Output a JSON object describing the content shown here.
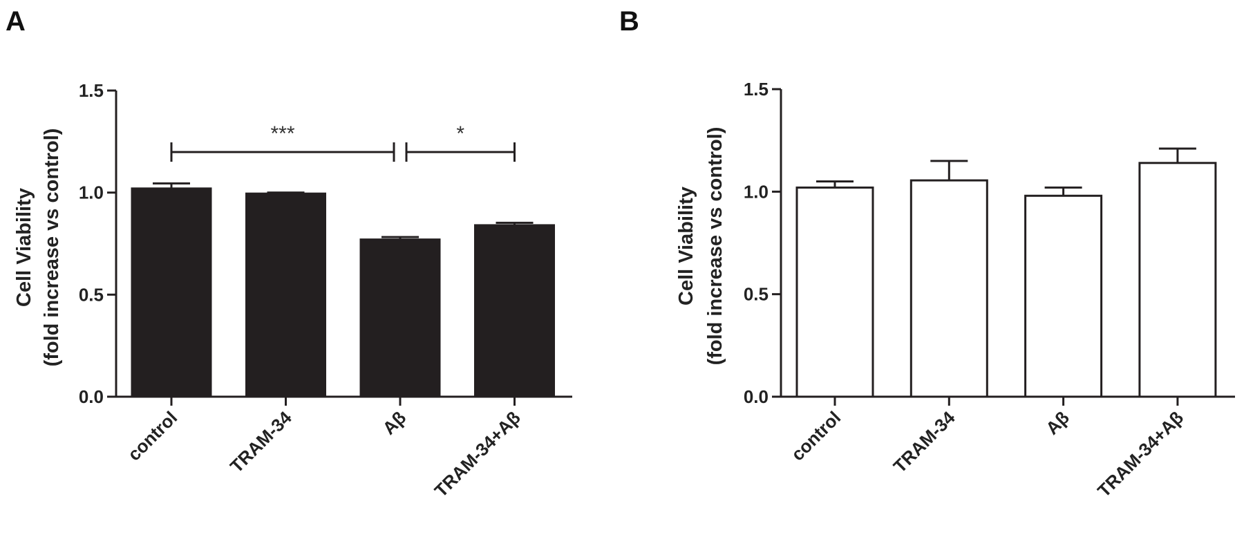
{
  "chart_data": [
    {
      "panel_label": "A",
      "type": "bar",
      "categories": [
        "control",
        "TRAM-34",
        "Aβ",
        "TRAM-34+Aβ"
      ],
      "values": [
        1.02,
        0.995,
        0.77,
        0.84
      ],
      "errors": [
        0.025,
        0.005,
        0.012,
        0.012
      ],
      "ylabel_line1": "Cell Viability",
      "ylabel_line2": "(fold increase vs control)",
      "ylim": [
        0,
        1.5
      ],
      "yticks": [
        "0.0",
        "0.5",
        "1.0",
        "1.5"
      ],
      "bar_fill": "#231f20",
      "significance": [
        {
          "from": "control",
          "to": "Aβ",
          "label": "***"
        },
        {
          "from": "Aβ",
          "to": "TRAM-34+Aβ",
          "label": "*"
        }
      ]
    },
    {
      "panel_label": "B",
      "type": "bar",
      "categories": [
        "control",
        "TRAM-34",
        "Aβ",
        "TRAM-34+Aβ"
      ],
      "values": [
        1.02,
        1.055,
        0.98,
        1.14
      ],
      "errors": [
        0.03,
        0.095,
        0.04,
        0.07
      ],
      "ylabel_line1": "Cell Viability",
      "ylabel_line2": "(fold increase vs control)",
      "ylim": [
        0,
        1.5
      ],
      "yticks": [
        "0.0",
        "0.5",
        "1.0",
        "1.5"
      ],
      "bar_fill": "#ffffff",
      "significance": []
    }
  ]
}
